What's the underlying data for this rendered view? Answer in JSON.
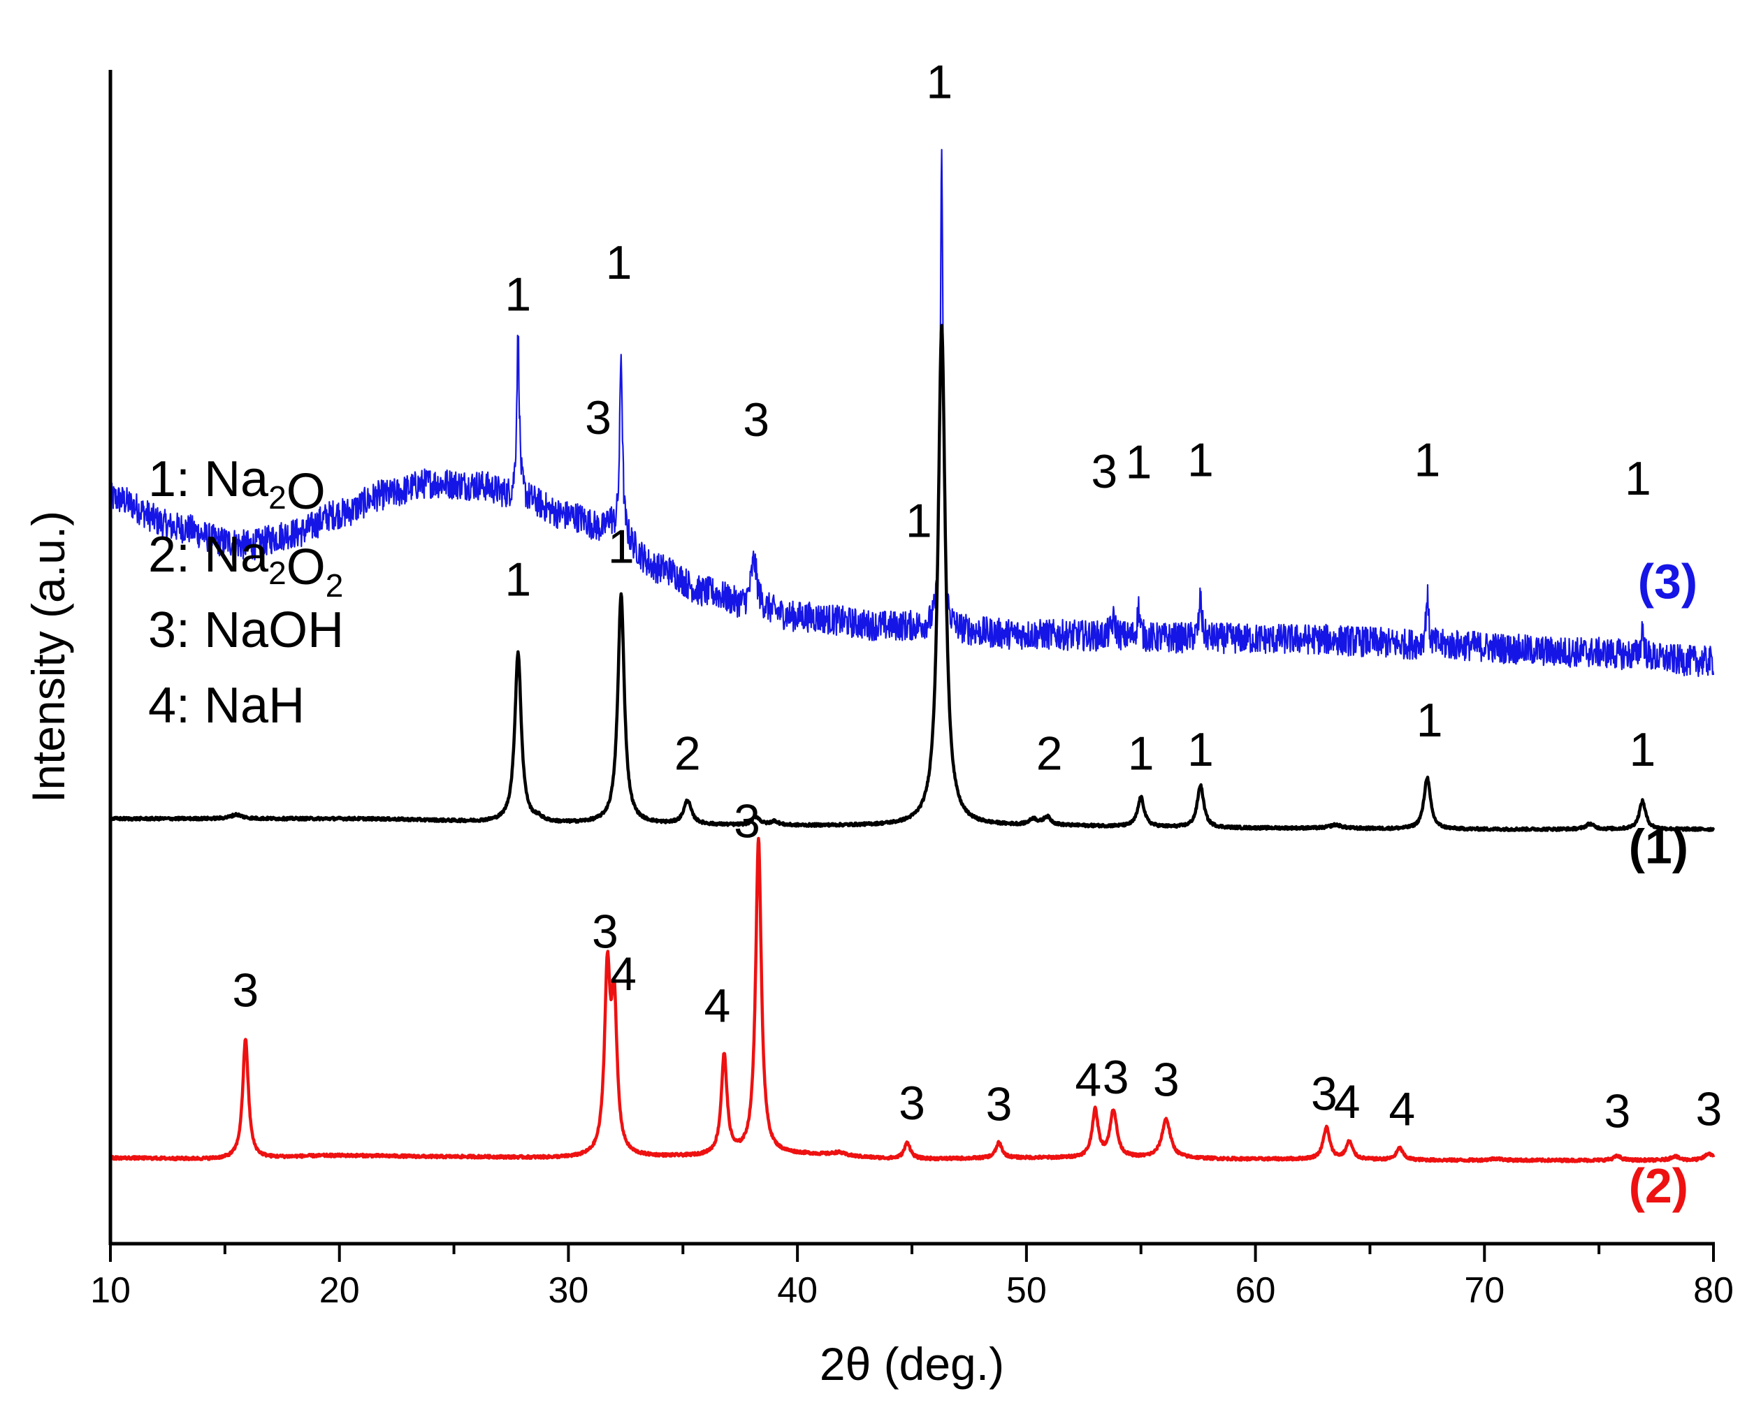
{
  "chart_data": {
    "type": "line",
    "xlabel": "2θ (deg.)",
    "ylabel": "Intensity (a.u.)",
    "xlim": [
      10,
      80
    ],
    "ylim": [
      0,
      100
    ],
    "xticks": [
      10,
      20,
      30,
      40,
      50,
      60,
      70,
      80
    ],
    "y_tick_labels": false,
    "grid": false,
    "legend": {
      "placement": "left",
      "entries": [
        {
          "num": "1",
          "formula": [
            [
              "Na",
              ""
            ],
            [
              "2",
              "sub"
            ],
            [
              "O",
              ""
            ]
          ]
        },
        {
          "num": "2",
          "formula": [
            [
              "Na",
              ""
            ],
            [
              "2",
              "sub"
            ],
            [
              "O",
              ""
            ],
            [
              "2",
              "sub"
            ]
          ]
        },
        {
          "num": "3",
          "formula": [
            [
              "NaOH",
              ""
            ]
          ]
        },
        {
          "num": "4",
          "formula": [
            [
              "NaH",
              ""
            ]
          ]
        }
      ]
    },
    "series": [
      {
        "name": "(3)",
        "color": "#1515e6",
        "noise": 1.3,
        "background": [
          [
            10,
            63.5
          ],
          [
            13,
            61.0
          ],
          [
            15,
            59.8
          ],
          [
            16,
            59.5
          ],
          [
            18,
            60.5
          ],
          [
            20,
            62.2
          ],
          [
            22,
            63.8
          ],
          [
            24,
            64.8
          ],
          [
            26,
            64.6
          ],
          [
            28,
            63.4
          ],
          [
            30,
            62.0
          ],
          [
            32,
            60.5
          ],
          [
            34,
            57.5
          ],
          [
            36,
            55.5
          ],
          [
            38,
            54.2
          ],
          [
            40,
            53.4
          ],
          [
            44,
            52.6
          ],
          [
            50,
            51.9
          ],
          [
            56,
            51.6
          ],
          [
            62,
            51.5
          ],
          [
            68,
            51.0
          ],
          [
            74,
            50.4
          ],
          [
            80,
            49.6
          ]
        ],
        "peaks": [
          {
            "x": 27.8,
            "height": 14.0,
            "width": 0.07,
            "label": "1",
            "label_pos": [
              27.8,
              79.5
            ]
          },
          {
            "x": 31.8,
            "height": 1.2,
            "width": 0.12,
            "label": "3",
            "label_pos": [
              31.3,
              69.0
            ]
          },
          {
            "x": 32.3,
            "height": 15.5,
            "width": 0.07,
            "label": "1",
            "label_pos": [
              32.2,
              82.2
            ]
          },
          {
            "x": 38.1,
            "height": 4.0,
            "width": 0.16,
            "label": "3",
            "label_pos": [
              38.2,
              68.8
            ]
          },
          {
            "x": 46.3,
            "height": 40.0,
            "width": 0.07,
            "label": "1",
            "label_pos": [
              46.2,
              97.6
            ]
          },
          {
            "x": 53.8,
            "height": 1.4,
            "width": 0.12,
            "label": "3",
            "label_pos": [
              53.4,
              64.4
            ]
          },
          {
            "x": 54.9,
            "height": 2.6,
            "width": 0.07,
            "label": "1",
            "label_pos": [
              54.9,
              65.2
            ]
          },
          {
            "x": 57.6,
            "height": 3.3,
            "width": 0.07,
            "label": "1",
            "label_pos": [
              57.6,
              65.4
            ]
          },
          {
            "x": 67.5,
            "height": 4.2,
            "width": 0.07,
            "label": "1",
            "label_pos": [
              67.5,
              65.4
            ]
          },
          {
            "x": 76.9,
            "height": 2.5,
            "width": 0.07,
            "label": "1",
            "label_pos": [
              76.7,
              63.8
            ]
          }
        ],
        "tag": "(3)",
        "tag_pos": [
          78.0,
          55.0
        ]
      },
      {
        "name": "(1)",
        "color": "#000000",
        "noise": 0.12,
        "background": [
          [
            10,
            36.2
          ],
          [
            20,
            36.2
          ],
          [
            30,
            35.8
          ],
          [
            40,
            35.6
          ],
          [
            50,
            35.6
          ],
          [
            60,
            35.4
          ],
          [
            70,
            35.3
          ],
          [
            80,
            35.3
          ]
        ],
        "peaks": [
          {
            "x": 15.5,
            "height": 0.35,
            "width": 0.3
          },
          {
            "x": 27.8,
            "height": 14.5,
            "width": 0.17,
            "label": "1",
            "label_pos": [
              27.8,
              55.2
            ]
          },
          {
            "x": 28.7,
            "height": 0.3,
            "width": 0.2
          },
          {
            "x": 32.3,
            "height": 19.5,
            "width": 0.17,
            "label": "1",
            "label_pos": [
              32.3,
              58.0
            ]
          },
          {
            "x": 35.2,
            "height": 2.0,
            "width": 0.2,
            "label": "2",
            "label_pos": [
              35.2,
              40.4
            ]
          },
          {
            "x": 38.2,
            "height": 0.7,
            "width": 0.2
          },
          {
            "x": 39.0,
            "height": 0.35,
            "width": 0.2
          },
          {
            "x": 46.3,
            "height": 42.5,
            "width": 0.19,
            "label": "1",
            "label_pos": [
              45.3,
              60.2
            ]
          },
          {
            "x": 50.3,
            "height": 0.5,
            "width": 0.2
          },
          {
            "x": 50.9,
            "height": 0.7,
            "width": 0.2,
            "label": "2",
            "label_pos": [
              51.0,
              40.4
            ]
          },
          {
            "x": 55.0,
            "height": 2.5,
            "width": 0.17,
            "label": "1",
            "label_pos": [
              55.0,
              40.4
            ]
          },
          {
            "x": 57.6,
            "height": 3.6,
            "width": 0.17,
            "label": "1",
            "label_pos": [
              57.6,
              40.7
            ]
          },
          {
            "x": 63.5,
            "height": 0.3,
            "width": 0.3
          },
          {
            "x": 67.5,
            "height": 4.4,
            "width": 0.17,
            "label": "1",
            "label_pos": [
              67.6,
              43.2
            ]
          },
          {
            "x": 74.6,
            "height": 0.45,
            "width": 0.22
          },
          {
            "x": 76.9,
            "height": 2.4,
            "width": 0.17,
            "label": "1",
            "label_pos": [
              76.9,
              40.7
            ]
          }
        ],
        "tag": "(1)",
        "tag_pos": [
          77.6,
          32.4
        ]
      },
      {
        "name": "(2)",
        "color": "#ee1111",
        "noise": 0.12,
        "background": [
          [
            10,
            7.3
          ],
          [
            15,
            7.2
          ],
          [
            20,
            7.5
          ],
          [
            25,
            7.4
          ],
          [
            30,
            7.3
          ],
          [
            35,
            7.4
          ],
          [
            40,
            7.6
          ],
          [
            45,
            7.2
          ],
          [
            50,
            7.3
          ],
          [
            55,
            7.3
          ],
          [
            60,
            7.2
          ],
          [
            70,
            7.1
          ],
          [
            80,
            7.1
          ]
        ],
        "peaks": [
          {
            "x": 15.9,
            "height": 10.2,
            "width": 0.15,
            "label": "3",
            "label_pos": [
              15.9,
              20.2
            ]
          },
          {
            "x": 31.7,
            "height": 15.0,
            "width": 0.15,
            "label": "3",
            "label_pos": [
              31.6,
              25.2
            ]
          },
          {
            "x": 32.0,
            "height": 12.2,
            "width": 0.15,
            "label": "4",
            "label_pos": [
              32.4,
              21.6
            ]
          },
          {
            "x": 36.8,
            "height": 8.5,
            "width": 0.15,
            "label": "4",
            "label_pos": [
              36.5,
              18.9
            ]
          },
          {
            "x": 38.3,
            "height": 26.8,
            "width": 0.15,
            "label": "3",
            "label_pos": [
              37.8,
              34.6
            ]
          },
          {
            "x": 41.8,
            "height": 0.25,
            "width": 0.3
          },
          {
            "x": 44.8,
            "height": 1.4,
            "width": 0.16,
            "label": "3",
            "label_pos": [
              45.0,
              10.6
            ]
          },
          {
            "x": 48.8,
            "height": 1.3,
            "width": 0.16,
            "label": "3",
            "label_pos": [
              48.8,
              10.5
            ]
          },
          {
            "x": 53.0,
            "height": 4.0,
            "width": 0.16,
            "label": "4",
            "label_pos": [
              52.7,
              12.6
            ]
          },
          {
            "x": 53.8,
            "height": 4.0,
            "width": 0.18,
            "label": "3",
            "label_pos": [
              53.9,
              12.8
            ]
          },
          {
            "x": 56.1,
            "height": 3.3,
            "width": 0.22,
            "label": "3",
            "label_pos": [
              56.1,
              12.6
            ]
          },
          {
            "x": 63.1,
            "height": 2.7,
            "width": 0.17,
            "label": "3",
            "label_pos": [
              63.0,
              11.4
            ]
          },
          {
            "x": 64.1,
            "height": 1.5,
            "width": 0.17,
            "label": "4",
            "label_pos": [
              64.0,
              10.7
            ]
          },
          {
            "x": 66.3,
            "height": 1.0,
            "width": 0.17,
            "label": "4",
            "label_pos": [
              66.4,
              10.1
            ]
          },
          {
            "x": 70.5,
            "height": 0.15,
            "width": 0.3
          },
          {
            "x": 75.8,
            "height": 0.35,
            "width": 0.2,
            "label": "3",
            "label_pos": [
              75.8,
              9.9
            ]
          },
          {
            "x": 78.3,
            "height": 0.35,
            "width": 0.2
          },
          {
            "x": 79.8,
            "height": 0.6,
            "width": 0.2,
            "label": "3",
            "label_pos": [
              79.8,
              10.1
            ]
          }
        ],
        "tag": "(2)",
        "tag_pos": [
          77.6,
          3.5
        ]
      }
    ]
  }
}
